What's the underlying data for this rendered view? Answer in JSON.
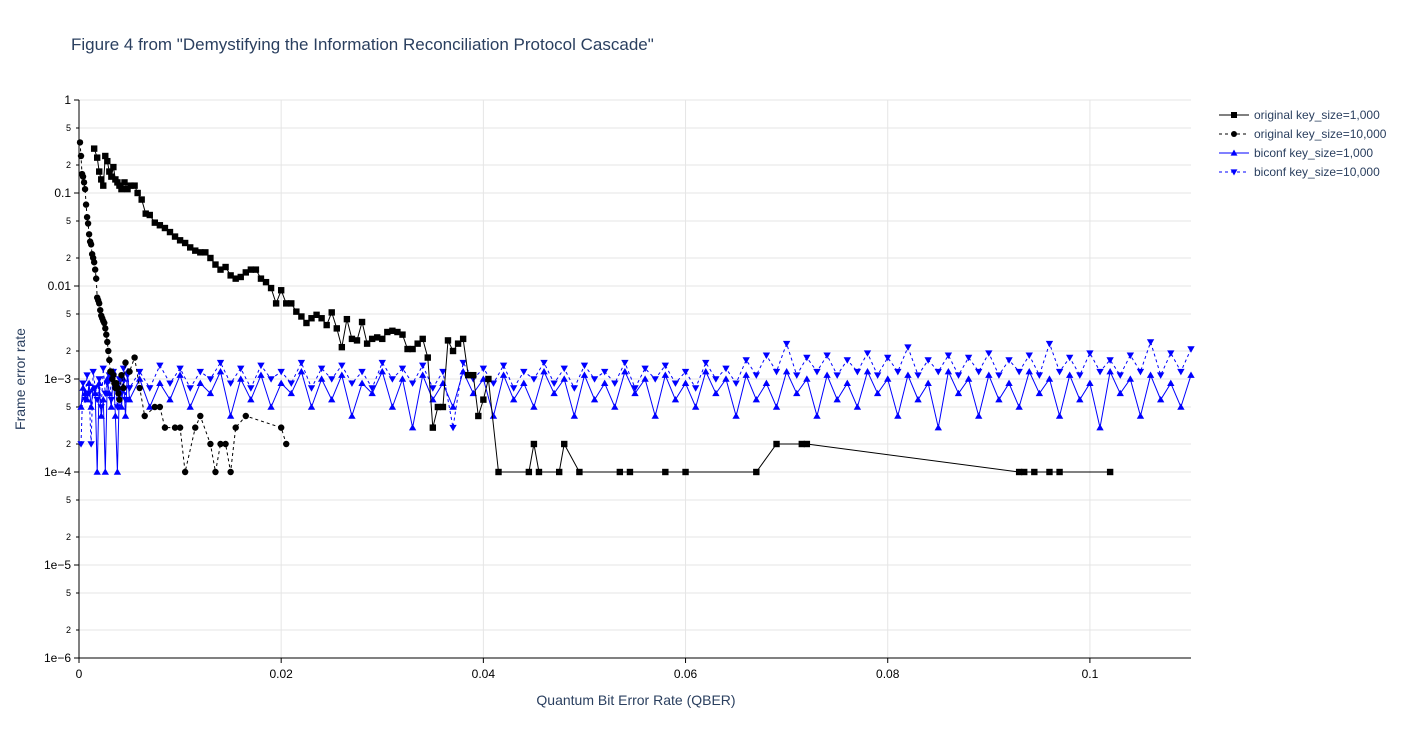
{
  "chart_data": {
    "type": "line",
    "title": "Figure 4 from \"Demystifying the Information Reconciliation Protocol Cascade\"",
    "xlabel": "Quantum Bit Error Rate (QBER)",
    "ylabel": "Frame error rate",
    "xlim": [
      0,
      0.11
    ],
    "ylim": [
      1e-06,
      1
    ],
    "yscale": "log",
    "grid": true,
    "legend_position": "top-right",
    "x_ticks": [
      {
        "value": 0,
        "label": "0"
      },
      {
        "value": 0.02,
        "label": "0.02"
      },
      {
        "value": 0.04,
        "label": "0.04"
      },
      {
        "value": 0.06,
        "label": "0.06"
      },
      {
        "value": 0.08,
        "label": "0.08"
      },
      {
        "value": 0.1,
        "label": "0.1"
      }
    ],
    "y_major_ticks": [
      {
        "value": 1,
        "label": "1"
      },
      {
        "value": 0.1,
        "label": "0.1"
      },
      {
        "value": 0.01,
        "label": "0.01"
      },
      {
        "value": 0.001,
        "label": "1e−3"
      },
      {
        "value": 0.0001,
        "label": "1e−4"
      },
      {
        "value": 1e-05,
        "label": "1e−5"
      },
      {
        "value": 1e-06,
        "label": "1e−6"
      }
    ],
    "y_minor_ticks": [
      {
        "value": 0.5,
        "label": "5"
      },
      {
        "value": 0.2,
        "label": "2"
      },
      {
        "value": 0.05,
        "label": "5"
      },
      {
        "value": 0.02,
        "label": "2"
      },
      {
        "value": 0.005,
        "label": "5"
      },
      {
        "value": 0.002,
        "label": "2"
      },
      {
        "value": 0.0005,
        "label": "5"
      },
      {
        "value": 0.0002,
        "label": "2"
      },
      {
        "value": 5e-05,
        "label": "5"
      },
      {
        "value": 2e-05,
        "label": "2"
      },
      {
        "value": 5e-06,
        "label": "5"
      },
      {
        "value": 2e-06,
        "label": "2"
      }
    ],
    "series": [
      {
        "name": "original key_size=1,000",
        "color": "#000000",
        "dash": "solid",
        "marker": "square",
        "x": [
          0.0015,
          0.0018,
          0.002,
          0.0022,
          0.0024,
          0.0026,
          0.0028,
          0.003,
          0.0032,
          0.0034,
          0.0036,
          0.0038,
          0.004,
          0.0042,
          0.0045,
          0.0048,
          0.0051,
          0.0055,
          0.0058,
          0.0062,
          0.0066,
          0.007,
          0.0075,
          0.008,
          0.0085,
          0.009,
          0.0095,
          0.01,
          0.0105,
          0.011,
          0.0115,
          0.012,
          0.0125,
          0.013,
          0.0135,
          0.014,
          0.0145,
          0.015,
          0.0155,
          0.016,
          0.0165,
          0.017,
          0.0175,
          0.018,
          0.0185,
          0.019,
          0.0195,
          0.02,
          0.0205,
          0.021,
          0.0215,
          0.022,
          0.0225,
          0.023,
          0.0235,
          0.024,
          0.0245,
          0.025,
          0.0255,
          0.026,
          0.0265,
          0.027,
          0.0275,
          0.028,
          0.0285,
          0.029,
          0.0295,
          0.03,
          0.0305,
          0.031,
          0.0315,
          0.032,
          0.0325,
          0.033,
          0.0335,
          0.034,
          0.0345,
          0.035,
          0.0355,
          0.036,
          0.0365,
          0.037,
          0.0375,
          0.038,
          0.0385,
          0.039,
          0.0395,
          0.04,
          0.0405,
          0.0415,
          0.0445,
          0.045,
          0.0455,
          0.0475,
          0.048,
          0.0495,
          0.0535,
          0.0545,
          0.058,
          0.06,
          0.067,
          0.069,
          0.0715,
          0.072,
          0.093,
          0.0935,
          0.0945,
          0.096,
          0.097,
          0.102
        ],
        "y": [
          0.3,
          0.24,
          0.17,
          0.14,
          0.12,
          0.25,
          0.22,
          0.17,
          0.15,
          0.19,
          0.14,
          0.13,
          0.12,
          0.11,
          0.13,
          0.11,
          0.12,
          0.12,
          0.1,
          0.085,
          0.06,
          0.058,
          0.048,
          0.045,
          0.042,
          0.038,
          0.034,
          0.031,
          0.029,
          0.026,
          0.024,
          0.023,
          0.023,
          0.02,
          0.017,
          0.015,
          0.016,
          0.013,
          0.012,
          0.0125,
          0.014,
          0.015,
          0.015,
          0.012,
          0.011,
          0.0095,
          0.0065,
          0.009,
          0.0065,
          0.0065,
          0.0053,
          0.0047,
          0.004,
          0.0045,
          0.0049,
          0.0045,
          0.0038,
          0.0052,
          0.0035,
          0.0022,
          0.0044,
          0.0027,
          0.0026,
          0.0041,
          0.0024,
          0.0027,
          0.0028,
          0.0027,
          0.0032,
          0.0033,
          0.0032,
          0.003,
          0.0021,
          0.0021,
          0.0024,
          0.0027,
          0.0017,
          0.0003,
          0.0005,
          0.0005,
          0.0026,
          0.002,
          0.0024,
          0.0027,
          0.0011,
          0.0011,
          0.0004,
          0.0006,
          0.001,
          0.0001,
          0.0001,
          0.0002,
          0.0001,
          0.0001,
          0.0002,
          0.0001,
          0.0001,
          0.0001,
          0.0001,
          0.0001,
          0.0001,
          0.0002,
          0.0002,
          0.0002,
          0.0001,
          0.0001,
          0.0001,
          0.0001,
          0.0001,
          0.0001
        ]
      },
      {
        "name": "original key_size=10,000",
        "color": "#000000",
        "dash": "dot",
        "marker": "circle",
        "x": [
          0.0001,
          0.0002,
          0.0003,
          0.0004,
          0.0005,
          0.0006,
          0.0007,
          0.0008,
          0.0009,
          0.001,
          0.0011,
          0.0012,
          0.0013,
          0.0014,
          0.0015,
          0.0016,
          0.0017,
          0.0018,
          0.0019,
          0.002,
          0.0021,
          0.0022,
          0.0023,
          0.0024,
          0.0025,
          0.0026,
          0.0027,
          0.0028,
          0.0029,
          0.003,
          0.0031,
          0.0032,
          0.0033,
          0.0034,
          0.0035,
          0.0036,
          0.0037,
          0.0038,
          0.0039,
          0.004,
          0.0042,
          0.0044,
          0.0046,
          0.005,
          0.0055,
          0.006,
          0.0065,
          0.0075,
          0.008,
          0.0085,
          0.0095,
          0.01,
          0.0105,
          0.0115,
          0.012,
          0.013,
          0.0135,
          0.014,
          0.0145,
          0.015,
          0.0155,
          0.0165,
          0.02,
          0.0205
        ],
        "y": [
          0.35,
          0.25,
          0.16,
          0.15,
          0.13,
          0.11,
          0.075,
          0.055,
          0.047,
          0.036,
          0.03,
          0.028,
          0.022,
          0.02,
          0.018,
          0.015,
          0.012,
          0.0075,
          0.007,
          0.0065,
          0.0055,
          0.0048,
          0.0045,
          0.0042,
          0.004,
          0.0035,
          0.003,
          0.0025,
          0.002,
          0.0016,
          0.0012,
          0.0012,
          0.001,
          0.0011,
          0.0009,
          0.0008,
          0.0009,
          0.0008,
          0.0007,
          0.0006,
          0.0011,
          0.0008,
          0.0015,
          0.0012,
          0.0017,
          0.0008,
          0.0004,
          0.0005,
          0.0005,
          0.0003,
          0.0003,
          0.0003,
          0.0001,
          0.0003,
          0.0004,
          0.0002,
          0.0001,
          0.0002,
          0.0002,
          0.0001,
          0.0003,
          0.0004,
          0.0003,
          0.0002
        ]
      },
      {
        "name": "biconf key_size=1,000",
        "color": "#0000ff",
        "dash": "solid",
        "marker": "triangle-up",
        "x": [
          0.0002,
          0.0004,
          0.0006,
          0.0008,
          0.001,
          0.0012,
          0.0014,
          0.0016,
          0.0018,
          0.002,
          0.0022,
          0.0024,
          0.0026,
          0.0028,
          0.003,
          0.0032,
          0.0034,
          0.0036,
          0.0038,
          0.004,
          0.0042,
          0.0044,
          0.0046,
          0.0048,
          0.005,
          0.006,
          0.007,
          0.008,
          0.009,
          0.01,
          0.011,
          0.012,
          0.013,
          0.014,
          0.015,
          0.016,
          0.017,
          0.018,
          0.019,
          0.02,
          0.021,
          0.022,
          0.023,
          0.024,
          0.025,
          0.026,
          0.027,
          0.028,
          0.029,
          0.03,
          0.031,
          0.032,
          0.033,
          0.034,
          0.035,
          0.036,
          0.037,
          0.038,
          0.039,
          0.04,
          0.041,
          0.042,
          0.043,
          0.044,
          0.045,
          0.046,
          0.047,
          0.048,
          0.049,
          0.05,
          0.051,
          0.052,
          0.053,
          0.054,
          0.055,
          0.056,
          0.057,
          0.058,
          0.059,
          0.06,
          0.061,
          0.062,
          0.063,
          0.064,
          0.065,
          0.066,
          0.067,
          0.068,
          0.069,
          0.07,
          0.071,
          0.072,
          0.073,
          0.074,
          0.075,
          0.076,
          0.077,
          0.078,
          0.079,
          0.08,
          0.081,
          0.082,
          0.083,
          0.084,
          0.085,
          0.086,
          0.087,
          0.088,
          0.089,
          0.09,
          0.091,
          0.092,
          0.093,
          0.094,
          0.095,
          0.096,
          0.097,
          0.098,
          0.099,
          0.1,
          0.101,
          0.102,
          0.103,
          0.104,
          0.105,
          0.106,
          0.107,
          0.108,
          0.109,
          0.11
        ],
        "y": [
          0.0005,
          0.0008,
          0.0007,
          0.0006,
          0.0009,
          0.0005,
          0.0008,
          0.0007,
          0.0001,
          0.0009,
          0.0004,
          0.0006,
          0.0001,
          0.001,
          0.0007,
          0.0005,
          0.0012,
          0.0004,
          0.0001,
          0.0008,
          0.0005,
          0.001,
          0.0004,
          0.0012,
          0.0006,
          0.001,
          0.0005,
          0.0009,
          0.0006,
          0.0011,
          0.0005,
          0.0009,
          0.0007,
          0.0012,
          0.0004,
          0.001,
          0.0006,
          0.0011,
          0.0005,
          0.0009,
          0.0007,
          0.0012,
          0.0005,
          0.001,
          0.0006,
          0.0011,
          0.0004,
          0.0009,
          0.0007,
          0.0012,
          0.0005,
          0.001,
          0.0003,
          0.0011,
          0.0006,
          0.0009,
          0.0005,
          0.0012,
          0.0007,
          0.001,
          0.0004,
          0.0011,
          0.0006,
          0.0009,
          0.0005,
          0.0012,
          0.0007,
          0.001,
          0.0004,
          0.0011,
          0.0006,
          0.0009,
          0.0005,
          0.0012,
          0.0007,
          0.001,
          0.0004,
          0.0011,
          0.0006,
          0.0009,
          0.0005,
          0.0012,
          0.0007,
          0.001,
          0.0004,
          0.0011,
          0.0006,
          0.0009,
          0.0005,
          0.0012,
          0.0007,
          0.001,
          0.0004,
          0.0011,
          0.0006,
          0.0009,
          0.0005,
          0.0012,
          0.0007,
          0.001,
          0.0004,
          0.0011,
          0.0006,
          0.0009,
          0.0003,
          0.0012,
          0.0007,
          0.001,
          0.0004,
          0.0011,
          0.0006,
          0.0009,
          0.0005,
          0.0012,
          0.0007,
          0.001,
          0.0004,
          0.0011,
          0.0006,
          0.0009,
          0.0003,
          0.0012,
          0.0007,
          0.001,
          0.0004,
          0.0011,
          0.0006,
          0.0009,
          0.0005,
          0.0011
        ]
      },
      {
        "name": "biconf key_size=10,000",
        "color": "#0000ff",
        "dash": "dot",
        "marker": "triangle-down",
        "x": [
          0.0002,
          0.0004,
          0.0006,
          0.0008,
          0.001,
          0.0012,
          0.0014,
          0.0016,
          0.0018,
          0.002,
          0.0022,
          0.0024,
          0.0026,
          0.0028,
          0.003,
          0.0032,
          0.0034,
          0.0036,
          0.0038,
          0.004,
          0.0042,
          0.0044,
          0.0046,
          0.0048,
          0.005,
          0.006,
          0.007,
          0.008,
          0.009,
          0.01,
          0.011,
          0.012,
          0.013,
          0.014,
          0.015,
          0.016,
          0.017,
          0.018,
          0.019,
          0.02,
          0.021,
          0.022,
          0.023,
          0.024,
          0.025,
          0.026,
          0.027,
          0.028,
          0.029,
          0.03,
          0.031,
          0.032,
          0.033,
          0.034,
          0.035,
          0.036,
          0.037,
          0.038,
          0.039,
          0.04,
          0.041,
          0.042,
          0.043,
          0.044,
          0.045,
          0.046,
          0.047,
          0.048,
          0.049,
          0.05,
          0.051,
          0.052,
          0.053,
          0.054,
          0.055,
          0.056,
          0.057,
          0.058,
          0.059,
          0.06,
          0.061,
          0.062,
          0.063,
          0.064,
          0.065,
          0.066,
          0.067,
          0.068,
          0.069,
          0.07,
          0.071,
          0.072,
          0.073,
          0.074,
          0.075,
          0.076,
          0.077,
          0.078,
          0.079,
          0.08,
          0.081,
          0.082,
          0.083,
          0.084,
          0.085,
          0.086,
          0.087,
          0.088,
          0.089,
          0.09,
          0.091,
          0.092,
          0.093,
          0.094,
          0.095,
          0.096,
          0.097,
          0.098,
          0.099,
          0.1,
          0.101,
          0.102,
          0.103,
          0.104,
          0.105,
          0.106,
          0.107,
          0.108,
          0.109,
          0.11
        ],
        "y": [
          0.0002,
          0.0009,
          0.0006,
          0.0011,
          0.0007,
          0.0002,
          0.0012,
          0.0008,
          0.0006,
          0.001,
          0.0005,
          0.0013,
          0.0007,
          0.0009,
          0.0011,
          0.0006,
          0.0012,
          0.0008,
          0.0005,
          0.001,
          0.0007,
          0.0013,
          0.0006,
          0.0011,
          0.0008,
          0.0012,
          0.0008,
          0.0014,
          0.0009,
          0.0013,
          0.0008,
          0.0012,
          0.001,
          0.0015,
          0.0009,
          0.0013,
          0.0008,
          0.0014,
          0.001,
          0.0012,
          0.0009,
          0.0015,
          0.0008,
          0.0013,
          0.001,
          0.0014,
          0.0009,
          0.0012,
          0.0008,
          0.0015,
          0.001,
          0.0013,
          0.0009,
          0.0014,
          0.0008,
          0.0012,
          0.0003,
          0.0015,
          0.001,
          0.0013,
          0.0009,
          0.0014,
          0.0008,
          0.0012,
          0.001,
          0.0015,
          0.0009,
          0.0013,
          0.0008,
          0.0014,
          0.001,
          0.0012,
          0.0009,
          0.0015,
          0.0008,
          0.0013,
          0.001,
          0.0014,
          0.0009,
          0.0012,
          0.0008,
          0.0015,
          0.001,
          0.0013,
          0.0009,
          0.0016,
          0.0011,
          0.0018,
          0.0012,
          0.0024,
          0.0011,
          0.0017,
          0.0012,
          0.0018,
          0.0011,
          0.0016,
          0.0012,
          0.0019,
          0.0011,
          0.0017,
          0.0012,
          0.0022,
          0.0011,
          0.0016,
          0.0012,
          0.0018,
          0.0011,
          0.0017,
          0.0012,
          0.0019,
          0.0011,
          0.0016,
          0.0012,
          0.0018,
          0.0011,
          0.0024,
          0.0012,
          0.0017,
          0.0011,
          0.0019,
          0.0012,
          0.0016,
          0.0011,
          0.0018,
          0.0012,
          0.0025,
          0.0011,
          0.0019,
          0.0012,
          0.0021
        ]
      }
    ]
  }
}
